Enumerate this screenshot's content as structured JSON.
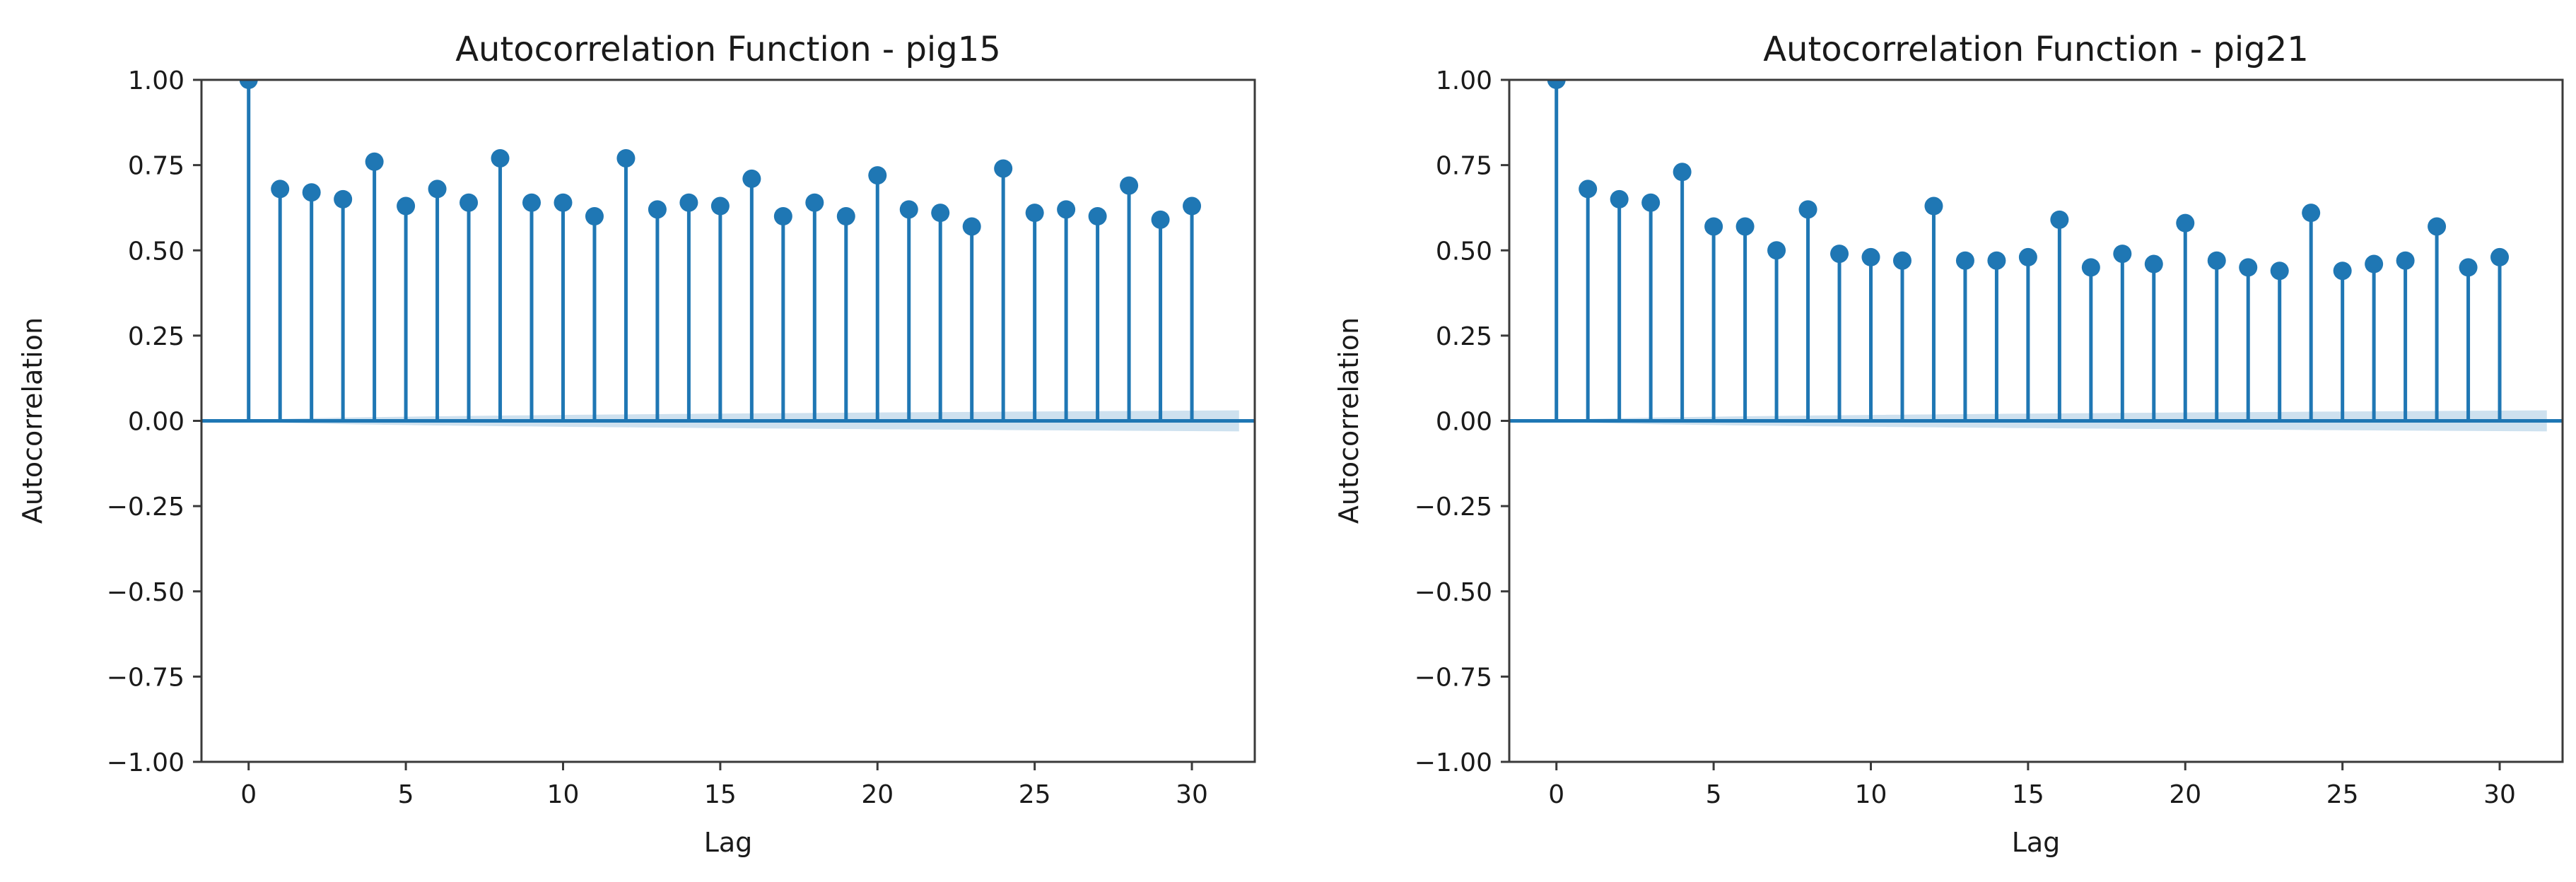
{
  "figure": {
    "background": "#ffffff",
    "text_color": "#1a1a1a",
    "accent_color": "#1f77b4",
    "band_color": "rgba(31,119,180,0.22)",
    "spine_color": "#3a3a3a"
  },
  "chart_data": [
    {
      "type": "stem",
      "title": "Autocorrelation Function - pig15",
      "xlabel": "Lag",
      "ylabel": "Autocorrelation",
      "lags": [
        0,
        1,
        2,
        3,
        4,
        5,
        6,
        7,
        8,
        9,
        10,
        11,
        12,
        13,
        14,
        15,
        16,
        17,
        18,
        19,
        20,
        21,
        22,
        23,
        24,
        25,
        26,
        27,
        28,
        29,
        30
      ],
      "values": [
        1.0,
        0.68,
        0.67,
        0.65,
        0.76,
        0.63,
        0.68,
        0.64,
        0.77,
        0.64,
        0.64,
        0.6,
        0.77,
        0.62,
        0.64,
        0.63,
        0.71,
        0.6,
        0.64,
        0.6,
        0.72,
        0.62,
        0.61,
        0.57,
        0.74,
        0.61,
        0.62,
        0.6,
        0.69,
        0.59,
        0.63
      ],
      "xlim": [
        -1.5,
        32.0
      ],
      "ylim": [
        -1.0,
        1.0
      ],
      "xticks": [
        0,
        5,
        10,
        15,
        20,
        25,
        30
      ],
      "xtick_labels": [
        "0",
        "5",
        "10",
        "15",
        "20",
        "25",
        "30"
      ],
      "yticks": [
        1.0,
        0.75,
        0.5,
        0.25,
        0.0,
        -0.25,
        -0.5,
        -0.75,
        -1.0
      ],
      "ytick_labels": [
        "1.00",
        "0.75",
        "0.50",
        "0.25",
        "0.00",
        "−0.25",
        "−0.50",
        "−0.75",
        "−1.00"
      ],
      "zero_line": true,
      "grid": false,
      "legend": null,
      "conf_band": {
        "start_lag": 0,
        "end_lag": 31.5,
        "half_width_at_lag30": 0.03,
        "shape": "sqrt"
      }
    },
    {
      "type": "stem",
      "title": "Autocorrelation Function - pig21",
      "xlabel": "Lag",
      "ylabel": "Autocorrelation",
      "lags": [
        0,
        1,
        2,
        3,
        4,
        5,
        6,
        7,
        8,
        9,
        10,
        11,
        12,
        13,
        14,
        15,
        16,
        17,
        18,
        19,
        20,
        21,
        22,
        23,
        24,
        25,
        26,
        27,
        28,
        29,
        30
      ],
      "values": [
        1.0,
        0.68,
        0.65,
        0.64,
        0.73,
        0.57,
        0.57,
        0.5,
        0.62,
        0.49,
        0.48,
        0.47,
        0.63,
        0.47,
        0.47,
        0.48,
        0.59,
        0.45,
        0.49,
        0.46,
        0.58,
        0.47,
        0.45,
        0.44,
        0.61,
        0.44,
        0.46,
        0.47,
        0.57,
        0.45,
        0.48
      ],
      "xlim": [
        -1.5,
        32.0
      ],
      "ylim": [
        -1.0,
        1.0
      ],
      "xticks": [
        0,
        5,
        10,
        15,
        20,
        25,
        30
      ],
      "xtick_labels": [
        "0",
        "5",
        "10",
        "15",
        "20",
        "25",
        "30"
      ],
      "yticks": [
        1.0,
        0.75,
        0.5,
        0.25,
        0.0,
        -0.25,
        -0.5,
        -0.75,
        -1.0
      ],
      "ytick_labels": [
        "1.00",
        "0.75",
        "0.50",
        "0.25",
        "0.00",
        "−0.25",
        "−0.50",
        "−0.75",
        "−1.00"
      ],
      "zero_line": true,
      "grid": false,
      "legend": null,
      "conf_band": {
        "start_lag": 0,
        "end_lag": 31.5,
        "half_width_at_lag30": 0.03,
        "shape": "sqrt"
      }
    }
  ]
}
